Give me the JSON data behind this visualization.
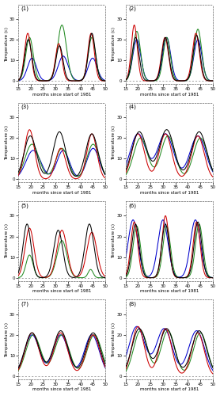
{
  "n_plots": 8,
  "xlim": [
    15,
    50
  ],
  "ylim": [
    -1.5,
    37
  ],
  "xticks": [
    15,
    20,
    25,
    30,
    35,
    40,
    45,
    50
  ],
  "yticks": [
    0,
    10,
    20,
    30
  ],
  "xlabel": "months since start of 1981",
  "ylabel": "Temperature (c)",
  "colors": {
    "black": "#000000",
    "green": "#228B22",
    "red": "#cc0000",
    "blue": "#0000cc"
  },
  "linewidth": 0.75,
  "background": "#ffffff",
  "plots": [
    {
      "label": "1",
      "black": {
        "peaks": [
          20,
          17,
          23
        ],
        "centers": [
          19.0,
          31.5,
          44.5
        ],
        "sigmas": [
          1.4,
          1.4,
          1.4
        ]
      },
      "green": {
        "peaks": [
          21,
          27,
          21
        ],
        "centers": [
          19.5,
          32.5,
          44.5
        ],
        "sigmas": [
          1.5,
          1.8,
          1.5
        ]
      },
      "red": {
        "peaks": [
          23,
          18,
          23
        ],
        "centers": [
          18.8,
          31.2,
          44.2
        ],
        "sigmas": [
          1.3,
          1.3,
          1.3
        ]
      },
      "blue": {
        "peaks": [
          11,
          12,
          11
        ],
        "centers": [
          20.5,
          33.0,
          44.8
        ],
        "sigmas": [
          1.8,
          2.0,
          1.8
        ]
      },
      "has_blue": true
    },
    {
      "label": "2",
      "black": {
        "peaks": [
          21,
          21,
          22
        ],
        "centers": [
          19.0,
          31.0,
          43.5
        ],
        "sigmas": [
          1.4,
          1.4,
          1.4
        ]
      },
      "green": {
        "peaks": [
          24,
          21,
          25
        ],
        "centers": [
          19.5,
          31.5,
          44.0
        ],
        "sigmas": [
          1.5,
          1.4,
          1.5
        ]
      },
      "red": {
        "peaks": [
          27,
          21,
          23
        ],
        "centers": [
          18.5,
          30.8,
          43.2
        ],
        "sigmas": [
          1.2,
          1.4,
          1.4
        ]
      },
      "blue": {
        "peaks": [
          20,
          21,
          20
        ],
        "centers": [
          19.5,
          31.5,
          44.0
        ],
        "sigmas": [
          1.6,
          1.6,
          1.6
        ]
      },
      "has_blue": true
    },
    {
      "label": "3",
      "black": {
        "peaks": [
          21,
          23,
          22
        ],
        "centers": [
          19.8,
          31.5,
          44.5
        ],
        "sigmas": [
          2.5,
          2.5,
          2.5
        ]
      },
      "green": {
        "peaks": [
          17,
          15,
          17
        ],
        "centers": [
          20.5,
          32.5,
          45.0
        ],
        "sigmas": [
          2.8,
          2.5,
          2.5
        ]
      },
      "red": {
        "peaks": [
          24,
          15,
          22
        ],
        "centers": [
          19.5,
          32.0,
          44.5
        ],
        "sigmas": [
          2.0,
          2.0,
          2.0
        ]
      },
      "blue": {
        "peaks": [
          14,
          14,
          15
        ],
        "centers": [
          21.0,
          33.0,
          45.0
        ],
        "sigmas": [
          3.0,
          2.5,
          2.5
        ]
      },
      "has_blue": true
    },
    {
      "label": "4",
      "black": {
        "peaks": [
          23,
          24,
          23
        ],
        "centers": [
          20.5,
          31.5,
          44.5
        ],
        "sigmas": [
          3.0,
          3.0,
          3.0
        ]
      },
      "green": {
        "peaks": [
          20,
          21,
          20
        ],
        "centers": [
          21.0,
          32.0,
          45.0
        ],
        "sigmas": [
          2.8,
          2.8,
          2.8
        ]
      },
      "red": {
        "peaks": [
          22,
          22,
          21
        ],
        "centers": [
          20.0,
          31.0,
          44.0
        ],
        "sigmas": [
          2.5,
          2.5,
          2.5
        ]
      },
      "blue": {
        "peaks": [
          22,
          22,
          21
        ],
        "centers": [
          20.0,
          31.0,
          44.0
        ],
        "sigmas": [
          3.2,
          3.2,
          3.2
        ]
      },
      "has_blue": true
    },
    {
      "label": "5",
      "black": {
        "peaks": [
          26,
          23,
          26
        ],
        "centers": [
          18.5,
          31.0,
          43.5
        ],
        "sigmas": [
          1.6,
          1.8,
          1.8
        ]
      },
      "green": {
        "peaks": [
          11,
          18,
          4
        ],
        "centers": [
          19.5,
          32.5,
          44.0
        ],
        "sigmas": [
          1.4,
          2.0,
          1.0
        ]
      },
      "red": {
        "peaks": [
          24,
          23,
          22
        ],
        "centers": [
          19.5,
          32.5,
          44.5
        ],
        "sigmas": [
          1.8,
          2.0,
          2.0
        ]
      },
      "blue": {
        "peaks": [
          0,
          0,
          0
        ],
        "centers": [
          20.0,
          32.0,
          44.0
        ],
        "sigmas": [
          1.0,
          1.0,
          1.0
        ]
      },
      "has_blue": false
    },
    {
      "label": "6",
      "black": {
        "peaks": [
          26,
          26,
          27
        ],
        "centers": [
          19.0,
          31.0,
          44.0
        ],
        "sigmas": [
          1.5,
          1.5,
          1.5
        ]
      },
      "green": {
        "peaks": [
          25,
          25,
          26
        ],
        "centers": [
          19.5,
          31.5,
          44.5
        ],
        "sigmas": [
          1.5,
          1.5,
          1.5
        ]
      },
      "red": {
        "peaks": [
          27,
          30,
          27
        ],
        "centers": [
          18.5,
          31.0,
          43.5
        ],
        "sigmas": [
          1.4,
          1.4,
          1.4
        ]
      },
      "blue": {
        "peaks": [
          28,
          28,
          28
        ],
        "centers": [
          18.0,
          30.0,
          43.0
        ],
        "sigmas": [
          2.0,
          2.0,
          2.0
        ]
      },
      "has_blue": true
    },
    {
      "label": "7",
      "black": {
        "peaks": [
          21,
          22,
          21
        ],
        "centers": [
          20.5,
          32.0,
          45.0
        ],
        "sigmas": [
          3.0,
          3.0,
          3.0
        ]
      },
      "green": {
        "peaks": [
          20,
          20,
          20
        ],
        "centers": [
          21.0,
          32.5,
          45.5
        ],
        "sigmas": [
          3.0,
          3.0,
          3.0
        ]
      },
      "red": {
        "peaks": [
          21,
          21,
          20
        ],
        "centers": [
          20.5,
          32.0,
          45.0
        ],
        "sigmas": [
          2.8,
          2.8,
          2.8
        ]
      },
      "blue": {
        "peaks": [
          20,
          20,
          20
        ],
        "centers": [
          20.5,
          32.0,
          44.5
        ],
        "sigmas": [
          3.0,
          3.0,
          3.0
        ]
      },
      "has_blue": true
    },
    {
      "label": "8",
      "black": {
        "peaks": [
          23,
          23,
          22
        ],
        "centers": [
          20.5,
          31.5,
          44.5
        ],
        "sigmas": [
          3.0,
          3.0,
          3.0
        ]
      },
      "green": {
        "peaks": [
          22,
          22,
          21
        ],
        "centers": [
          21.0,
          32.0,
          45.0
        ],
        "sigmas": [
          2.8,
          2.8,
          2.8
        ]
      },
      "red": {
        "peaks": [
          24,
          23,
          21
        ],
        "centers": [
          20.0,
          31.0,
          44.0
        ],
        "sigmas": [
          2.5,
          2.5,
          2.5
        ]
      },
      "blue": {
        "peaks": [
          24,
          23,
          22
        ],
        "centers": [
          19.5,
          30.5,
          43.5
        ],
        "sigmas": [
          3.2,
          3.2,
          3.2
        ]
      },
      "has_blue": true
    }
  ]
}
